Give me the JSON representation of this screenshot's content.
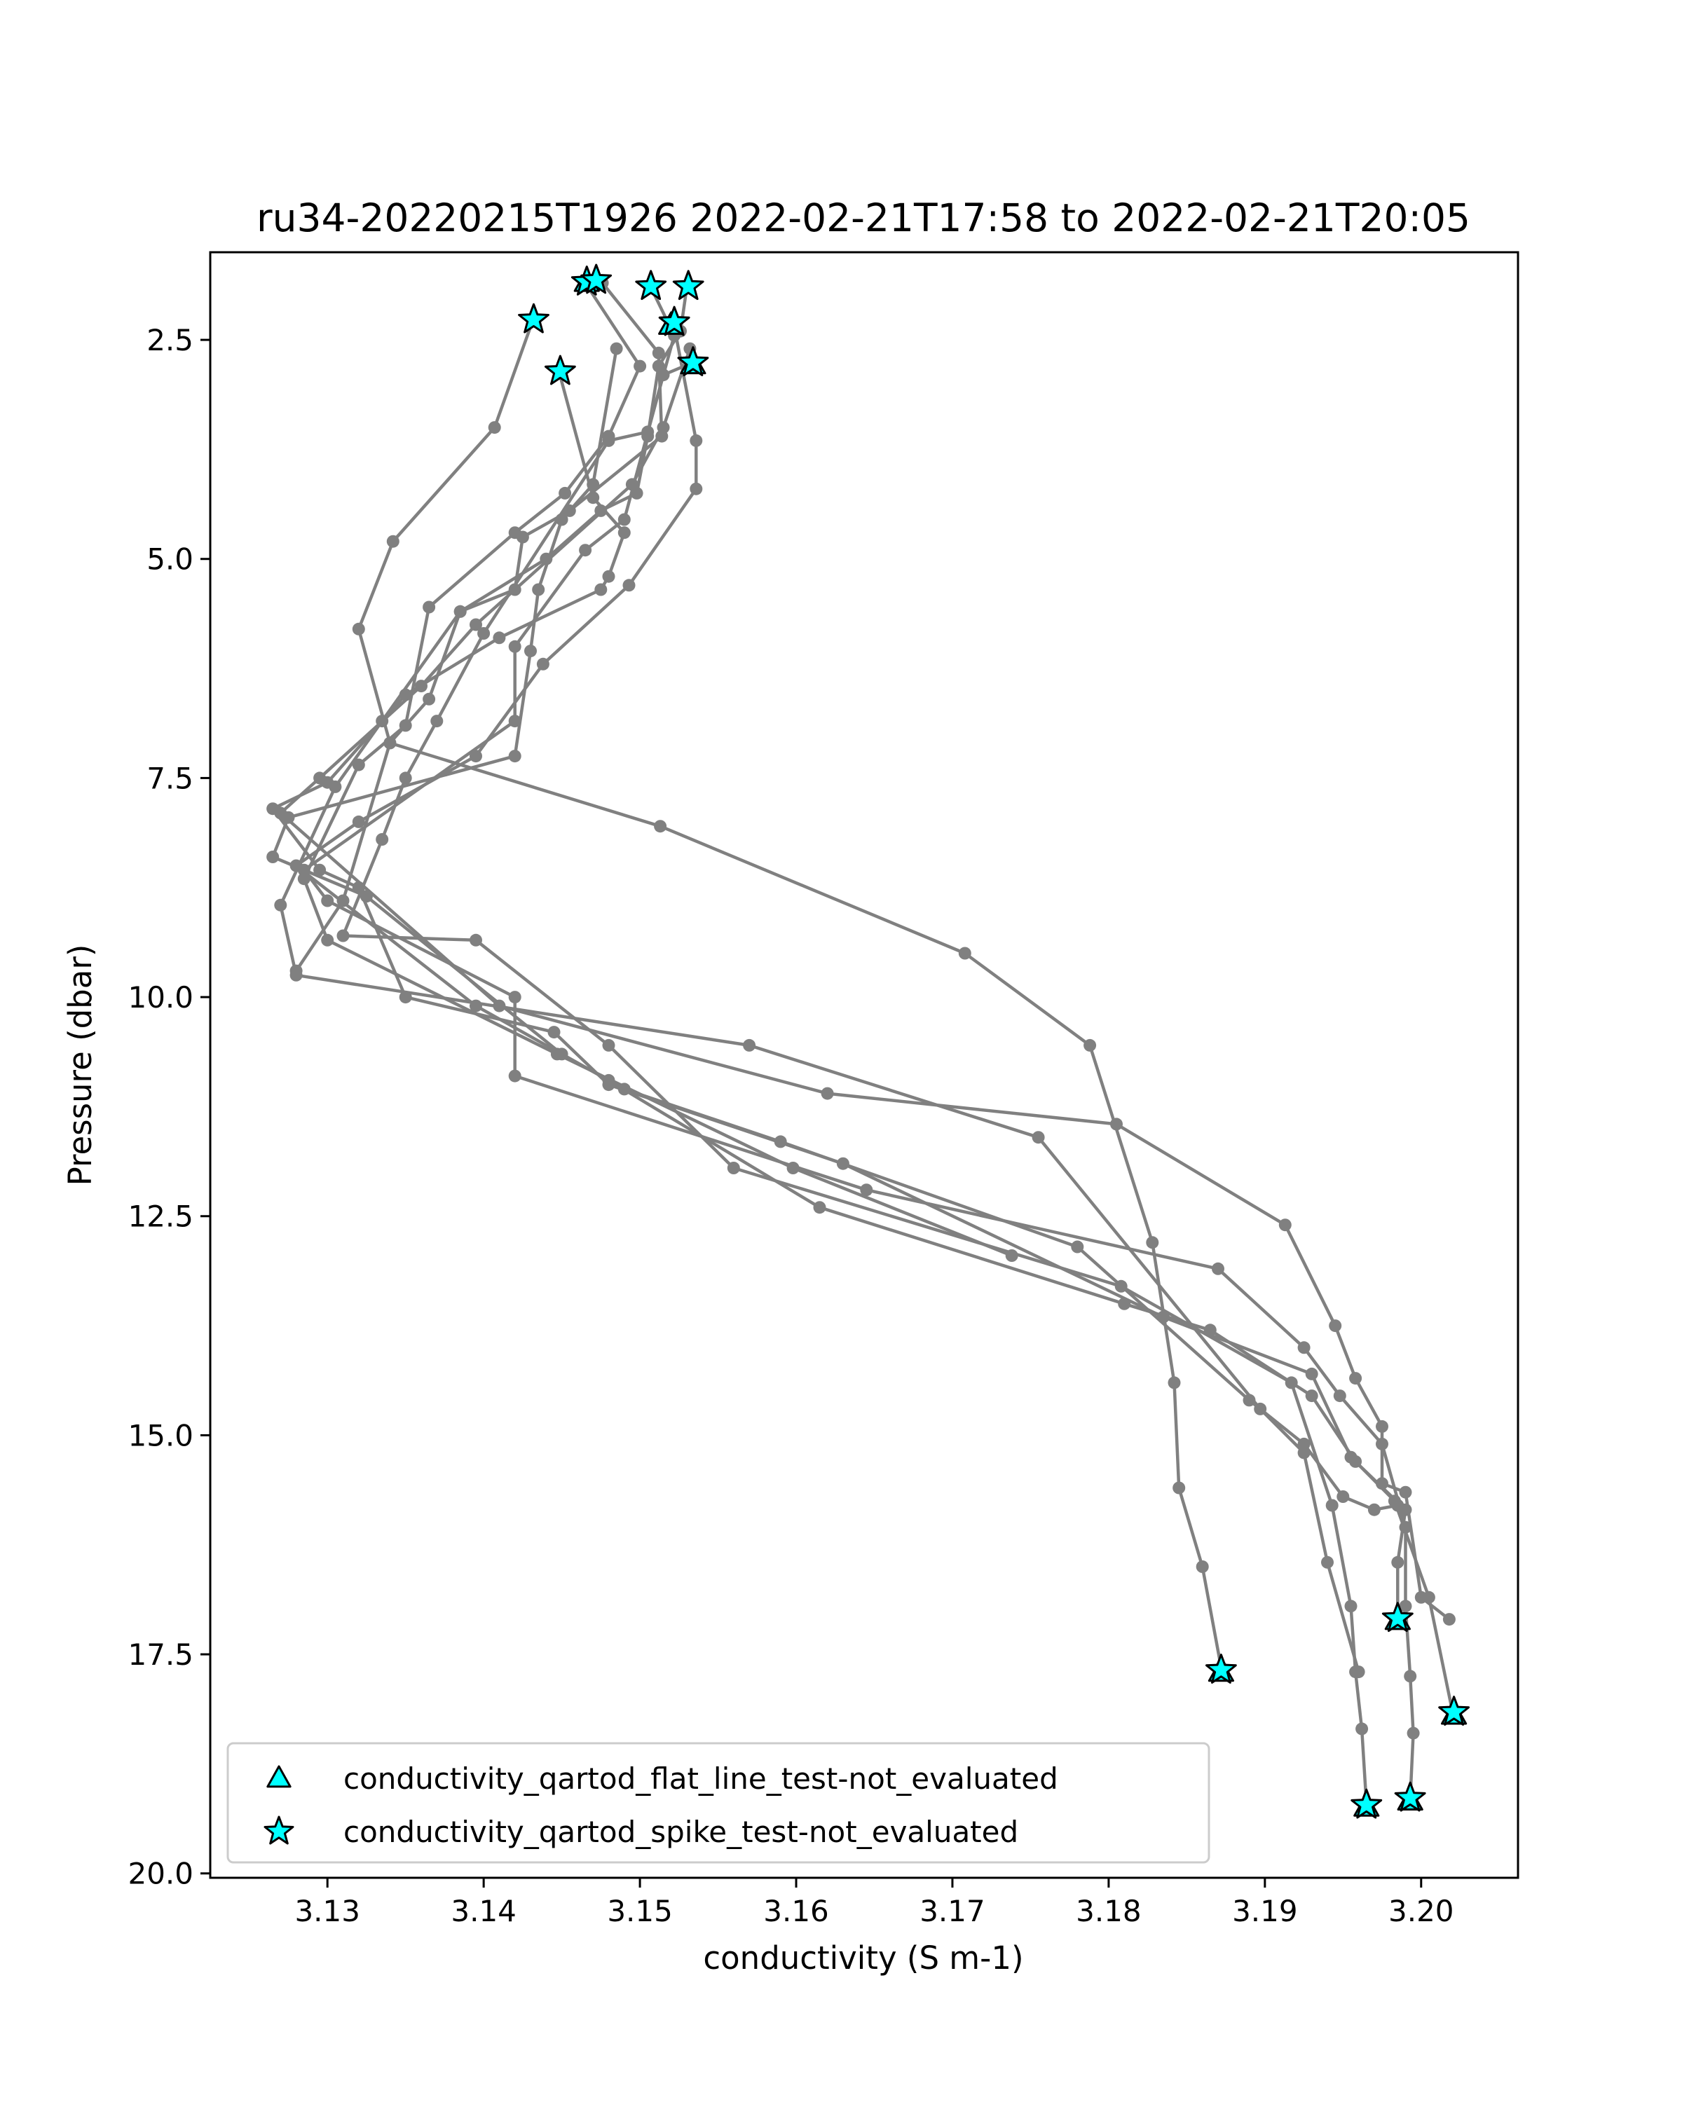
{
  "chart_data": {
    "type": "line",
    "title": "ru34-20220215T1926 2022-02-21T17:58 to 2022-02-21T20:05",
    "xlabel": "conductivity (S m-1)",
    "ylabel": "Pressure (dbar)",
    "xlim": [
      3.1225,
      3.2062
    ],
    "ylim": [
      20.05,
      1.5
    ],
    "y_inverted": true,
    "xticks": [
      3.13,
      3.14,
      3.15,
      3.16,
      3.17,
      3.18,
      3.19,
      3.2
    ],
    "xtick_labels": [
      "3.13",
      "3.14",
      "3.15",
      "3.16",
      "3.17",
      "3.18",
      "3.19",
      "3.20"
    ],
    "yticks": [
      2.5,
      5.0,
      7.5,
      10.0,
      12.5,
      15.0,
      17.5,
      20.0
    ],
    "ytick_labels": [
      "2.5",
      "5.0",
      "7.5",
      "10.0",
      "12.5",
      "15.0",
      "17.5",
      "20.0"
    ],
    "grid": false,
    "legend_position": "lower-left",
    "colors": {
      "line": "#808080",
      "marker": "#00FFFF",
      "edge": "#000000",
      "text": "#000000"
    },
    "series": [
      {
        "points": [
          [
            3.153,
            1.9
          ],
          [
            3.1526,
            2.4
          ],
          [
            3.1512,
            2.8
          ],
          [
            3.1505,
            3.6
          ],
          [
            3.1498,
            4.25
          ],
          [
            3.1475,
            4.45
          ],
          [
            3.144,
            5.0
          ],
          [
            3.1385,
            5.6
          ],
          [
            3.1365,
            6.6
          ],
          [
            3.134,
            7.1
          ],
          [
            3.131,
            8.9
          ],
          [
            3.128,
            9.7
          ]
        ]
      },
      {
        "points": [
          [
            3.1465,
            1.85
          ],
          [
            3.15,
            2.8
          ],
          [
            3.148,
            3.6
          ],
          [
            3.1452,
            4.25
          ],
          [
            3.142,
            4.7
          ],
          [
            3.1365,
            5.55
          ],
          [
            3.135,
            6.9
          ],
          [
            3.132,
            7.35
          ],
          [
            3.1285,
            8.65
          ],
          [
            3.13,
            9.35
          ],
          [
            3.1447,
            10.65
          ],
          [
            3.1598,
            11.95
          ],
          [
            3.1738,
            12.95
          ]
        ]
      },
      {
        "points": [
          [
            3.1432,
            2.25
          ],
          [
            3.1407,
            3.5
          ],
          [
            3.1342,
            4.8
          ],
          [
            3.132,
            5.8
          ],
          [
            3.134,
            7.1
          ],
          [
            3.1513,
            8.05
          ],
          [
            3.1708,
            9.5
          ],
          [
            3.1788,
            10.55
          ],
          [
            3.1828,
            12.8
          ],
          [
            3.1842,
            14.4
          ],
          [
            3.1845,
            15.6
          ],
          [
            3.186,
            16.5
          ],
          [
            3.1872,
            17.65
          ]
        ]
      },
      {
        "points": [
          [
            3.1448,
            2.85
          ],
          [
            3.147,
            4.3
          ],
          [
            3.149,
            4.7
          ],
          [
            3.148,
            5.2
          ],
          [
            3.1475,
            5.35
          ],
          [
            3.141,
            5.9
          ],
          [
            3.135,
            6.55
          ],
          [
            3.13,
            7.55
          ],
          [
            3.1265,
            7.85
          ],
          [
            3.1295,
            8.55
          ],
          [
            3.132,
            8.75
          ],
          [
            3.135,
            10.0
          ],
          [
            3.1445,
            10.4
          ],
          [
            3.148,
            11.0
          ],
          [
            3.163,
            11.9
          ],
          [
            3.1835,
            13.65
          ],
          [
            3.193,
            14.3
          ],
          [
            3.1955,
            15.25
          ],
          [
            3.199,
            15.85
          ],
          [
            3.1985,
            16.45
          ],
          [
            3.1985,
            17.1
          ]
        ]
      },
      {
        "points": [
          [
            3.1507,
            1.9
          ],
          [
            3.1522,
            2.45
          ],
          [
            3.1505,
            3.55
          ],
          [
            3.148,
            3.65
          ],
          [
            3.14,
            5.85
          ],
          [
            3.137,
            6.85
          ],
          [
            3.135,
            7.5
          ],
          [
            3.1335,
            8.2
          ],
          [
            3.131,
            9.3
          ],
          [
            3.1395,
            9.35
          ],
          [
            3.148,
            10.55
          ],
          [
            3.156,
            11.95
          ],
          [
            3.1808,
            13.3
          ],
          [
            3.1917,
            14.4
          ],
          [
            3.1943,
            15.8
          ],
          [
            3.1955,
            16.95
          ],
          [
            3.1958,
            17.7
          ],
          [
            3.1962,
            18.35
          ],
          [
            3.1965,
            19.2
          ]
        ]
      },
      {
        "points": [
          [
            3.1468,
            1.85
          ],
          [
            3.1476,
            1.85
          ],
          [
            3.1512,
            2.65
          ],
          [
            3.1514,
            3.6
          ],
          [
            3.1455,
            4.45
          ],
          [
            3.1425,
            4.75
          ],
          [
            3.142,
            5.35
          ],
          [
            3.1385,
            5.6
          ],
          [
            3.1335,
            6.85
          ],
          [
            3.1305,
            7.6
          ],
          [
            3.127,
            8.95
          ],
          [
            3.128,
            9.75
          ],
          [
            3.157,
            10.55
          ],
          [
            3.1755,
            11.6
          ],
          [
            3.1897,
            14.7
          ],
          [
            3.1925,
            15.2
          ],
          [
            3.194,
            16.45
          ],
          [
            3.196,
            17.7
          ]
        ]
      },
      {
        "points": [
          [
            3.1522,
            2.35
          ],
          [
            3.1536,
            3.65
          ],
          [
            3.1536,
            4.2
          ],
          [
            3.1493,
            5.3
          ],
          [
            3.1438,
            6.2
          ],
          [
            3.1395,
            7.25
          ],
          [
            3.132,
            8.0
          ],
          [
            3.128,
            8.5
          ],
          [
            3.1395,
            10.1
          ],
          [
            3.148,
            10.95
          ],
          [
            3.1615,
            12.4
          ],
          [
            3.181,
            13.5
          ],
          [
            3.1865,
            13.8
          ],
          [
            3.193,
            14.55
          ],
          [
            3.1958,
            15.3
          ],
          [
            3.1983,
            15.75
          ],
          [
            3.2005,
            16.85
          ],
          [
            3.202,
            18.15
          ]
        ]
      },
      {
        "points": [
          [
            3.1535,
            2.75
          ],
          [
            3.1515,
            2.9
          ],
          [
            3.149,
            4.55
          ],
          [
            3.1465,
            4.9
          ],
          [
            3.142,
            6.0
          ],
          [
            3.142,
            6.85
          ],
          [
            3.1285,
            8.55
          ],
          [
            3.13,
            8.9
          ],
          [
            3.142,
            10.0
          ],
          [
            3.142,
            10.9
          ],
          [
            3.1645,
            12.2
          ],
          [
            3.187,
            13.1
          ],
          [
            3.1925,
            14.0
          ],
          [
            3.1948,
            14.55
          ],
          [
            3.1975,
            15.1
          ],
          [
            3.199,
            16.05
          ],
          [
            3.199,
            16.95
          ],
          [
            3.1993,
            17.75
          ],
          [
            3.1995,
            18.4
          ],
          [
            3.1993,
            19.15
          ]
        ]
      },
      {
        "points": [
          [
            3.1485,
            2.6
          ],
          [
            3.147,
            4.15
          ],
          [
            3.145,
            4.55
          ],
          [
            3.1435,
            5.35
          ],
          [
            3.143,
            6.05
          ],
          [
            3.142,
            7.25
          ],
          [
            3.1275,
            7.95
          ],
          [
            3.1265,
            8.4
          ],
          [
            3.1325,
            8.85
          ],
          [
            3.145,
            10.65
          ],
          [
            3.149,
            11.05
          ],
          [
            3.159,
            11.65
          ],
          [
            3.178,
            12.85
          ],
          [
            3.189,
            14.6
          ],
          [
            3.1925,
            15.1
          ],
          [
            3.195,
            15.7
          ],
          [
            3.197,
            15.85
          ],
          [
            3.1985,
            15.8
          ]
        ]
      },
      {
        "points": [
          [
            3.1532,
            2.6
          ],
          [
            3.1515,
            3.5
          ],
          [
            3.1495,
            4.15
          ],
          [
            3.1395,
            5.75
          ],
          [
            3.136,
            6.45
          ],
          [
            3.1295,
            7.5
          ],
          [
            3.127,
            7.9
          ],
          [
            3.141,
            10.1
          ],
          [
            3.162,
            11.1
          ],
          [
            3.1805,
            11.45
          ],
          [
            3.1913,
            12.6
          ],
          [
            3.1945,
            13.75
          ],
          [
            3.1958,
            14.35
          ],
          [
            3.1975,
            14.9
          ],
          [
            3.1975,
            15.55
          ],
          [
            3.199,
            15.65
          ],
          [
            3.2,
            16.85
          ],
          [
            3.2018,
            17.1
          ]
        ]
      }
    ],
    "flagged_points": [
      {
        "x": 3.1466,
        "y": 1.84,
        "flag": "conductivity_qartod_flat_line_test-not_evaluated"
      },
      {
        "x": 3.1466,
        "y": 1.84,
        "flag": "conductivity_qartod_spike_test-not_evaluated"
      },
      {
        "x": 3.1472,
        "y": 1.82,
        "flag": "conductivity_qartod_spike_test-not_evaluated"
      },
      {
        "x": 3.1507,
        "y": 1.89,
        "flag": "conductivity_qartod_spike_test-not_evaluated"
      },
      {
        "x": 3.1531,
        "y": 1.89,
        "flag": "conductivity_qartod_spike_test-not_evaluated"
      },
      {
        "x": 3.1432,
        "y": 2.27,
        "flag": "conductivity_qartod_spike_test-not_evaluated"
      },
      {
        "x": 3.152,
        "y": 2.33,
        "flag": "conductivity_qartod_flat_line_test-not_evaluated"
      },
      {
        "x": 3.1522,
        "y": 2.3,
        "flag": "conductivity_qartod_spike_test-not_evaluated"
      },
      {
        "x": 3.1534,
        "y": 2.78,
        "flag": "conductivity_qartod_flat_line_test-not_evaluated"
      },
      {
        "x": 3.1534,
        "y": 2.76,
        "flag": "conductivity_qartod_spike_test-not_evaluated"
      },
      {
        "x": 3.1449,
        "y": 2.86,
        "flag": "conductivity_qartod_spike_test-not_evaluated"
      },
      {
        "x": 3.1985,
        "y": 17.11,
        "flag": "conductivity_qartod_flat_line_test-not_evaluated"
      },
      {
        "x": 3.1985,
        "y": 17.09,
        "flag": "conductivity_qartod_spike_test-not_evaluated"
      },
      {
        "x": 3.1872,
        "y": 17.7,
        "flag": "conductivity_qartod_flat_line_test-not_evaluated"
      },
      {
        "x": 3.1872,
        "y": 17.68,
        "flag": "conductivity_qartod_spike_test-not_evaluated"
      },
      {
        "x": 3.2021,
        "y": 18.19,
        "flag": "conductivity_qartod_flat_line_test-not_evaluated"
      },
      {
        "x": 3.2021,
        "y": 18.16,
        "flag": "conductivity_qartod_spike_test-not_evaluated"
      },
      {
        "x": 3.1993,
        "y": 19.17,
        "flag": "conductivity_qartod_flat_line_test-not_evaluated"
      },
      {
        "x": 3.1993,
        "y": 19.14,
        "flag": "conductivity_qartod_spike_test-not_evaluated"
      },
      {
        "x": 3.1965,
        "y": 19.24,
        "flag": "conductivity_qartod_flat_line_test-not_evaluated"
      },
      {
        "x": 3.1965,
        "y": 19.22,
        "flag": "conductivity_qartod_spike_test-not_evaluated"
      }
    ],
    "legend": [
      {
        "label": "conductivity_qartod_flat_line_test-not_evaluated",
        "marker": "triangle"
      },
      {
        "label": "conductivity_qartod_spike_test-not_evaluated",
        "marker": "star"
      }
    ]
  }
}
